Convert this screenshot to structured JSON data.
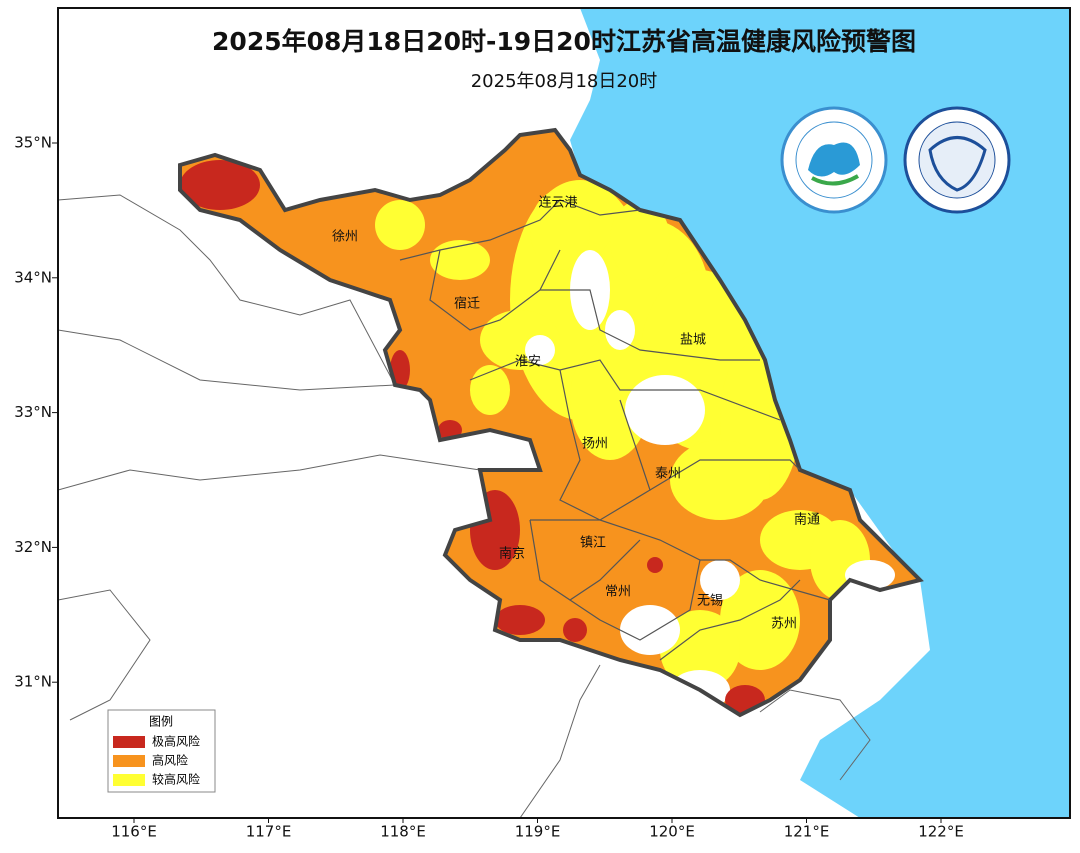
{
  "header": {
    "title": "2025年08月18日20时-19日20时江苏省高温健康风险预警图",
    "subtitle": "2025年08月18日20时"
  },
  "map": {
    "lat_labels": [
      "35°N",
      "34°N",
      "33°N",
      "32°N",
      "31°N"
    ],
    "lon_labels": [
      "116°E",
      "117°E",
      "118°E",
      "119°E",
      "120°E",
      "121°E",
      "122°E"
    ],
    "cities": [
      "徐州",
      "连云港",
      "宿迁",
      "淮安",
      "盐城",
      "扬州",
      "泰州",
      "南通",
      "南京",
      "镇江",
      "常州",
      "无锡",
      "苏州"
    ]
  },
  "legend": {
    "title": "图例",
    "items": [
      {
        "label": "极高风险",
        "color": "#c8281e"
      },
      {
        "label": "高风险",
        "color": "#f7931e"
      },
      {
        "label": "较高风险",
        "color": "#ffff33"
      }
    ]
  }
}
